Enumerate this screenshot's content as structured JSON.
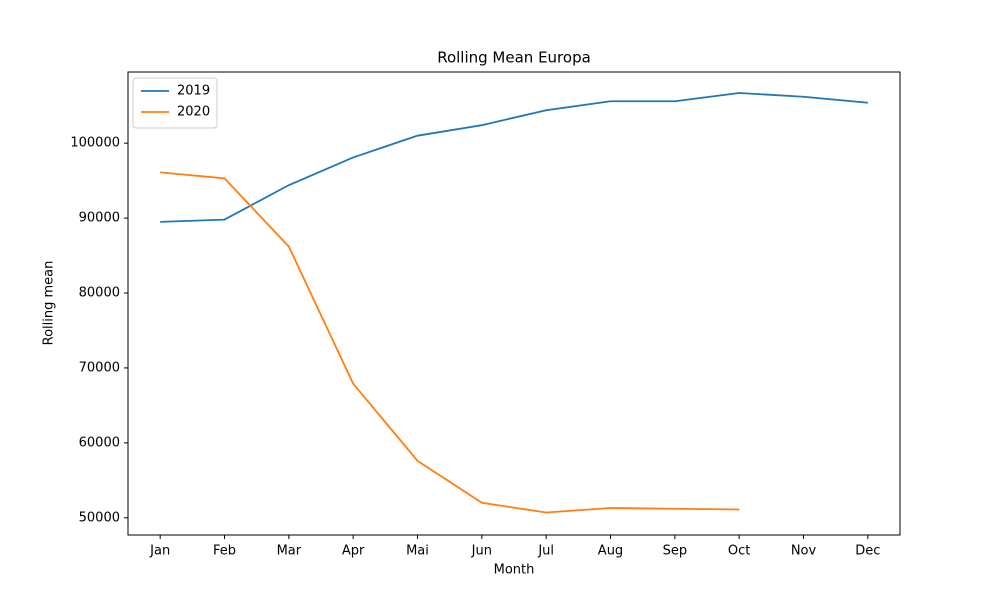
{
  "chart_data": {
    "type": "line",
    "title": "Rolling Mean Europa",
    "xlabel": "Month",
    "ylabel": "Rolling mean",
    "categories": [
      "Jan",
      "Feb",
      "Mar",
      "Apr",
      "Mai",
      "Jun",
      "Jul",
      "Aug",
      "Sep",
      "Oct",
      "Nov",
      "Dec"
    ],
    "series": [
      {
        "name": "2019",
        "color": "#1f77b4",
        "values": [
          89500,
          89800,
          94400,
          98100,
          101000,
          102400,
          104400,
          105600,
          105600,
          106700,
          106200,
          105400
        ]
      },
      {
        "name": "2020",
        "color": "#ff7f0e",
        "values": [
          96100,
          95300,
          86200,
          67900,
          57600,
          52000,
          50700,
          51300,
          51200,
          51100,
          null,
          null
        ]
      }
    ],
    "ylim": [
      47700,
      109500
    ],
    "yticks": [
      50000,
      60000,
      70000,
      80000,
      90000,
      100000
    ],
    "legend": "upper left",
    "grid": false
  }
}
